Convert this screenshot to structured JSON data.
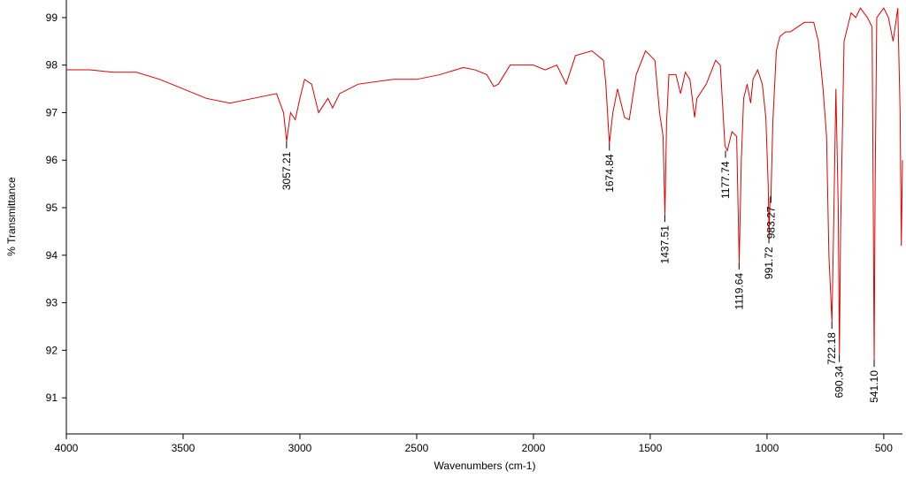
{
  "chart_data": {
    "type": "line",
    "xlabel": "Wavenumbers (cm-1)",
    "ylabel": "% Transmittance",
    "xlim": [
      4000,
      420
    ],
    "ylim": [
      90.24,
      99.37
    ],
    "xticks": [
      4000,
      3500,
      3000,
      2500,
      2000,
      1500,
      1000,
      500
    ],
    "yticks": [
      91,
      92,
      93,
      94,
      95,
      96,
      97,
      98,
      99
    ],
    "x": [
      4000,
      3900,
      3800,
      3700,
      3600,
      3500,
      3400,
      3300,
      3200,
      3100,
      3070,
      3057,
      3040,
      3020,
      3000,
      2980,
      2950,
      2920,
      2880,
      2860,
      2830,
      2750,
      2600,
      2500,
      2400,
      2300,
      2250,
      2200,
      2170,
      2150,
      2100,
      2000,
      1950,
      1900,
      1860,
      1820,
      1750,
      1700,
      1690,
      1675,
      1660,
      1640,
      1610,
      1590,
      1560,
      1520,
      1480,
      1460,
      1445,
      1437,
      1430,
      1420,
      1390,
      1370,
      1350,
      1330,
      1310,
      1300,
      1260,
      1220,
      1200,
      1180,
      1170,
      1150,
      1130,
      1119,
      1110,
      1100,
      1085,
      1070,
      1060,
      1040,
      1020,
      1005,
      995,
      991,
      987,
      983,
      975,
      960,
      945,
      920,
      900,
      870,
      840,
      800,
      780,
      760,
      745,
      735,
      722,
      715,
      705,
      695,
      690,
      685,
      670,
      640,
      620,
      600,
      570,
      550,
      545,
      541,
      537,
      530,
      500,
      480,
      460,
      440,
      430,
      425,
      420
    ],
    "series": [
      {
        "color": "#e00000",
        "values": [
          97.9,
          97.9,
          97.85,
          97.85,
          97.7,
          97.5,
          97.3,
          97.2,
          97.3,
          97.4,
          97.0,
          96.4,
          97.0,
          96.85,
          97.3,
          97.7,
          97.6,
          97.0,
          97.3,
          97.1,
          97.4,
          97.6,
          97.7,
          97.7,
          97.8,
          97.95,
          97.9,
          97.8,
          97.55,
          97.6,
          98.0,
          98.0,
          97.9,
          98.0,
          97.6,
          98.2,
          98.3,
          98.1,
          97.6,
          96.35,
          97.0,
          97.5,
          96.9,
          96.85,
          97.8,
          98.3,
          98.1,
          97.0,
          96.5,
          94.85,
          96.8,
          97.8,
          97.8,
          97.4,
          97.85,
          97.7,
          96.9,
          97.3,
          97.6,
          98.1,
          98.0,
          96.3,
          96.2,
          96.6,
          96.5,
          93.85,
          96.0,
          97.3,
          97.6,
          97.2,
          97.7,
          97.9,
          97.6,
          96.9,
          95.5,
          94.4,
          95.2,
          95.25,
          96.8,
          98.3,
          98.6,
          98.7,
          98.7,
          98.8,
          98.9,
          98.9,
          98.5,
          97.5,
          96.5,
          94.0,
          92.6,
          94.5,
          97.5,
          95.0,
          91.9,
          94.5,
          98.5,
          99.1,
          99.0,
          99.2,
          99.0,
          98.8,
          95.0,
          91.8,
          95.5,
          99.0,
          99.2,
          99.0,
          98.5,
          99.2,
          97.0,
          94.2,
          96.0
        ]
      }
    ],
    "annotations": [
      {
        "x": 3057.21,
        "y": 96.4
      },
      {
        "x": 1674.84,
        "y": 96.35
      },
      {
        "x": 1437.51,
        "y": 94.85
      },
      {
        "x": 1177.74,
        "y": 96.2
      },
      {
        "x": 1119.64,
        "y": 93.85
      },
      {
        "x": 991.72,
        "y": 94.4
      },
      {
        "x": 983.27,
        "y": 95.25
      },
      {
        "x": 722.18,
        "y": 92.6
      },
      {
        "x": 690.34,
        "y": 91.9
      },
      {
        "x": 541.1,
        "y": 91.8,
        "label": "541.10"
      }
    ]
  }
}
